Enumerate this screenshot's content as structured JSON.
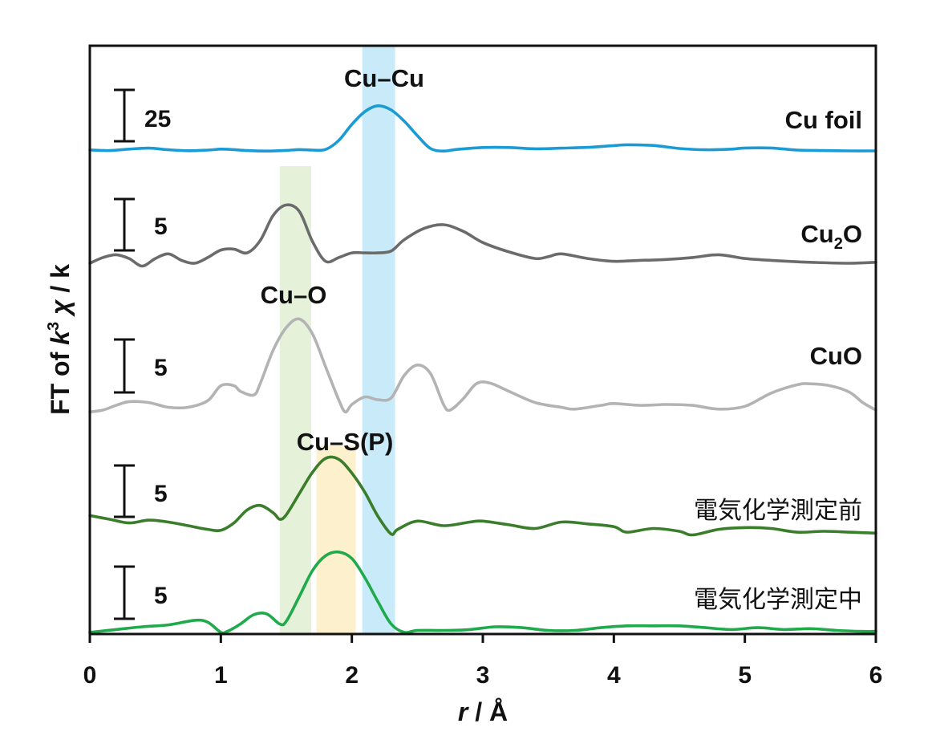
{
  "chart_data": {
    "type": "line",
    "title": "",
    "xlabel": "r / Å",
    "xlabel_parts": {
      "var": "r",
      "rest": " / Å"
    },
    "ylabel": "FT of k3 χ / k",
    "ylabel_parts": {
      "pre": "FT of ",
      "k": "k",
      "sup": "3",
      "chi": " χ",
      "post": " / k"
    },
    "xlim": [
      0,
      6
    ],
    "xticks": [
      0,
      1,
      2,
      3,
      4,
      5,
      6
    ],
    "xtick_labels": [
      "0",
      "1",
      "2",
      "3",
      "4",
      "5",
      "6"
    ],
    "y_axis_ticks": false,
    "grid": false,
    "legend": "none (labels placed at right end of each curve)",
    "bands": [
      {
        "label": "Cu–Cu",
        "range": [
          2.08,
          2.33
        ],
        "color": "#c9ebf9"
      },
      {
        "label": "Cu–O",
        "range": [
          1.45,
          1.69
        ],
        "color": "#e5f2d9"
      },
      {
        "label": "Cu–S(P)",
        "range": [
          1.73,
          2.03
        ],
        "color": "#fdf0cc"
      }
    ],
    "series": [
      {
        "name": "Cu foil",
        "color": "#1b9bd5",
        "scale_bar": "25",
        "scale_value": 25,
        "points": [
          [
            0,
            3.1
          ],
          [
            0.15,
            2.7
          ],
          [
            0.3,
            3.6
          ],
          [
            0.45,
            4.2
          ],
          [
            0.6,
            3.2
          ],
          [
            0.75,
            2.6
          ],
          [
            0.9,
            3.0
          ],
          [
            1.0,
            3.6
          ],
          [
            1.1,
            3.3
          ],
          [
            1.2,
            2.7
          ],
          [
            1.35,
            2.4
          ],
          [
            1.5,
            2.8
          ],
          [
            1.6,
            3.3
          ],
          [
            1.7,
            3.0
          ],
          [
            1.8,
            3.4
          ],
          [
            1.9,
            9
          ],
          [
            2.0,
            19
          ],
          [
            2.1,
            27
          ],
          [
            2.2,
            30.6
          ],
          [
            2.3,
            28
          ],
          [
            2.4,
            21
          ],
          [
            2.5,
            12
          ],
          [
            2.6,
            4
          ],
          [
            2.7,
            2.4
          ],
          [
            2.8,
            3.4
          ],
          [
            3.0,
            4.6
          ],
          [
            3.2,
            4.6
          ],
          [
            3.4,
            3.8
          ],
          [
            3.6,
            4.2
          ],
          [
            3.8,
            4.7
          ],
          [
            4.0,
            5.8
          ],
          [
            4.1,
            6.3
          ],
          [
            4.3,
            5.9
          ],
          [
            4.5,
            4.0
          ],
          [
            4.7,
            3.2
          ],
          [
            4.9,
            3.6
          ],
          [
            5.0,
            4.3
          ],
          [
            5.2,
            4.3
          ],
          [
            5.4,
            3.0
          ],
          [
            5.6,
            2.7
          ],
          [
            5.8,
            2.5
          ],
          [
            6.0,
            2.5
          ]
        ]
      },
      {
        "name": "Cu2O",
        "name_parts": {
          "main": "Cu",
          "sub": "2",
          "tail": "O"
        },
        "color": "#6b6b6b",
        "scale_bar": "5",
        "scale_value": 5,
        "points": [
          [
            0,
            1.2
          ],
          [
            0.1,
            1.8
          ],
          [
            0.2,
            2.1
          ],
          [
            0.3,
            1.7
          ],
          [
            0.4,
            0.9
          ],
          [
            0.5,
            1.7
          ],
          [
            0.6,
            2.2
          ],
          [
            0.7,
            1.5
          ],
          [
            0.8,
            1.2
          ],
          [
            0.9,
            1.8
          ],
          [
            1.0,
            2.6
          ],
          [
            1.1,
            2.7
          ],
          [
            1.2,
            2.3
          ],
          [
            1.3,
            3.6
          ],
          [
            1.4,
            6.3
          ],
          [
            1.5,
            7.4
          ],
          [
            1.6,
            6.7
          ],
          [
            1.7,
            3.5
          ],
          [
            1.8,
            1.4
          ],
          [
            1.9,
            1.8
          ],
          [
            2.0,
            2.3
          ],
          [
            2.1,
            2.3
          ],
          [
            2.2,
            2.3
          ],
          [
            2.3,
            2.5
          ],
          [
            2.4,
            3.7
          ],
          [
            2.55,
            4.9
          ],
          [
            2.7,
            5.3
          ],
          [
            2.85,
            4.6
          ],
          [
            3.0,
            3.4
          ],
          [
            3.2,
            2.4
          ],
          [
            3.4,
            1.7
          ],
          [
            3.5,
            1.9
          ],
          [
            3.6,
            2.2
          ],
          [
            3.8,
            1.7
          ],
          [
            4.0,
            1.4
          ],
          [
            4.2,
            1.5
          ],
          [
            4.4,
            1.6
          ],
          [
            4.6,
            1.8
          ],
          [
            4.8,
            2.1
          ],
          [
            5.0,
            1.7
          ],
          [
            5.2,
            1.5
          ],
          [
            5.5,
            1.3
          ],
          [
            5.8,
            1.2
          ],
          [
            6.0,
            1.3
          ]
        ]
      },
      {
        "name": "CuO",
        "color": "#b3b3b3",
        "scale_bar": "5",
        "scale_value": 5,
        "points": [
          [
            0,
            0.4
          ],
          [
            0.1,
            0.6
          ],
          [
            0.2,
            1.1
          ],
          [
            0.3,
            1.5
          ],
          [
            0.45,
            1.4
          ],
          [
            0.6,
            0.9
          ],
          [
            0.75,
            0.9
          ],
          [
            0.9,
            1.6
          ],
          [
            1.0,
            3.2
          ],
          [
            1.1,
            3.2
          ],
          [
            1.15,
            2.6
          ],
          [
            1.25,
            2.2
          ],
          [
            1.3,
            3.4
          ],
          [
            1.4,
            7.0
          ],
          [
            1.5,
            9.4
          ],
          [
            1.6,
            10.3
          ],
          [
            1.7,
            8.7
          ],
          [
            1.8,
            5.2
          ],
          [
            1.9,
            1.7
          ],
          [
            1.95,
            0.4
          ],
          [
            2.0,
            1.2
          ],
          [
            2.1,
            2.0
          ],
          [
            2.2,
            1.7
          ],
          [
            2.3,
            1.9
          ],
          [
            2.4,
            4.3
          ],
          [
            2.5,
            5.4
          ],
          [
            2.6,
            4.5
          ],
          [
            2.7,
            1.2
          ],
          [
            2.75,
            0.6
          ],
          [
            2.85,
            1.8
          ],
          [
            2.95,
            3.4
          ],
          [
            3.05,
            3.5
          ],
          [
            3.2,
            2.6
          ],
          [
            3.4,
            1.4
          ],
          [
            3.6,
            0.9
          ],
          [
            3.7,
            0.7
          ],
          [
            3.9,
            1.1
          ],
          [
            4.0,
            1.3
          ],
          [
            4.2,
            1.1
          ],
          [
            4.4,
            1.2
          ],
          [
            4.6,
            1.1
          ],
          [
            4.8,
            0.7
          ],
          [
            5.0,
            1.0
          ],
          [
            5.2,
            2.4
          ],
          [
            5.4,
            3.3
          ],
          [
            5.5,
            3.4
          ],
          [
            5.65,
            3.2
          ],
          [
            5.8,
            2.5
          ],
          [
            5.9,
            1.4
          ],
          [
            6.0,
            0.6
          ]
        ]
      },
      {
        "name": "電気化学測定前",
        "color": "#3a7d2a",
        "scale_bar": "5",
        "scale_value": 5,
        "points": [
          [
            0,
            2.4
          ],
          [
            0.15,
            2.0
          ],
          [
            0.3,
            1.6
          ],
          [
            0.45,
            1.9
          ],
          [
            0.6,
            1.7
          ],
          [
            0.75,
            1.3
          ],
          [
            0.9,
            0.9
          ],
          [
            1.0,
            0.8
          ],
          [
            1.1,
            1.6
          ],
          [
            1.2,
            3.0
          ],
          [
            1.3,
            3.5
          ],
          [
            1.4,
            2.7
          ],
          [
            1.45,
            2.0
          ],
          [
            1.5,
            2.5
          ],
          [
            1.6,
            4.8
          ],
          [
            1.7,
            7.1
          ],
          [
            1.8,
            8.6
          ],
          [
            1.9,
            8.5
          ],
          [
            2.0,
            7.0
          ],
          [
            2.1,
            4.9
          ],
          [
            2.2,
            2.3
          ],
          [
            2.3,
            0.4
          ],
          [
            2.35,
            0.9
          ],
          [
            2.5,
            1.8
          ],
          [
            2.7,
            1.3
          ],
          [
            2.9,
            1.7
          ],
          [
            3.0,
            1.8
          ],
          [
            3.2,
            1.4
          ],
          [
            3.4,
            1.0
          ],
          [
            3.6,
            1.7
          ],
          [
            3.8,
            1.5
          ],
          [
            4.0,
            1.2
          ],
          [
            4.1,
            0.6
          ],
          [
            4.3,
            1.0
          ],
          [
            4.5,
            0.7
          ],
          [
            4.6,
            0.3
          ],
          [
            4.8,
            0.9
          ],
          [
            5.0,
            1.1
          ],
          [
            5.2,
            1.0
          ],
          [
            5.4,
            0.6
          ],
          [
            5.6,
            0.7
          ],
          [
            5.8,
            0.6
          ],
          [
            6.0,
            0.5
          ]
        ]
      },
      {
        "name": "電気化学測定中",
        "color": "#1faa4b",
        "scale_bar": "5",
        "scale_value": 5,
        "points": [
          [
            0,
            0.1
          ],
          [
            0.2,
            0.4
          ],
          [
            0.4,
            0.7
          ],
          [
            0.6,
            0.9
          ],
          [
            0.8,
            1.4
          ],
          [
            0.9,
            1.2
          ],
          [
            1.0,
            0.1
          ],
          [
            1.05,
            0.2
          ],
          [
            1.15,
            1.0
          ],
          [
            1.25,
            2.0
          ],
          [
            1.35,
            2.1
          ],
          [
            1.45,
            1.0
          ],
          [
            1.5,
            1.3
          ],
          [
            1.6,
            4.0
          ],
          [
            1.7,
            6.8
          ],
          [
            1.8,
            8.4
          ],
          [
            1.9,
            8.8
          ],
          [
            2.0,
            8.1
          ],
          [
            2.1,
            6.0
          ],
          [
            2.2,
            3.4
          ],
          [
            2.3,
            1.0
          ],
          [
            2.4,
            0.1
          ],
          [
            2.5,
            0.3
          ],
          [
            2.7,
            0.3
          ],
          [
            2.9,
            0.4
          ],
          [
            3.1,
            0.7
          ],
          [
            3.3,
            0.6
          ],
          [
            3.5,
            0.3
          ],
          [
            3.7,
            0.3
          ],
          [
            3.9,
            0.6
          ],
          [
            4.1,
            0.8
          ],
          [
            4.3,
            0.8
          ],
          [
            4.5,
            0.8
          ],
          [
            4.7,
            0.6
          ],
          [
            4.9,
            0.4
          ],
          [
            5.1,
            0.6
          ],
          [
            5.3,
            0.4
          ],
          [
            5.5,
            0.5
          ],
          [
            5.7,
            0.3
          ],
          [
            5.9,
            0.2
          ],
          [
            6.0,
            0.2
          ]
        ]
      }
    ]
  }
}
